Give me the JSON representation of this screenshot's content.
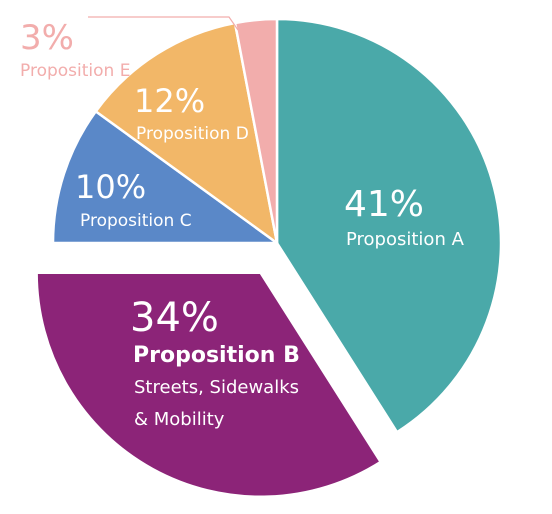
{
  "chart_data": {
    "type": "pie",
    "start_angle_deg": 0,
    "direction": "clockwise",
    "exploded_slice": "Proposition B",
    "slices": [
      {
        "id": "a",
        "name": "Proposition A",
        "value": 41,
        "pct_label": "41%",
        "desc": "",
        "color": "#4aa9a9",
        "label_color": "#ffffff"
      },
      {
        "id": "b",
        "name": "Proposition B",
        "value": 34,
        "pct_label": "34%",
        "desc": "Streets, Sidewalks & Mobility",
        "desc_lines": [
          "Streets, Sidewalks",
          "& Mobility"
        ],
        "color": "#8c2478",
        "label_color": "#ffffff"
      },
      {
        "id": "c",
        "name": "Proposition C",
        "value": 10,
        "pct_label": "10%",
        "desc": "",
        "color": "#5a88c8",
        "label_color": "#ffffff"
      },
      {
        "id": "d",
        "name": "Proposition D",
        "value": 12,
        "pct_label": "12%",
        "desc": "",
        "color": "#f2b768",
        "label_color": "#ffffff"
      },
      {
        "id": "e",
        "name": "Proposition E",
        "value": 3,
        "pct_label": "3%",
        "desc": "",
        "color": "#f2adac",
        "label_color": "#f2adac"
      }
    ]
  }
}
